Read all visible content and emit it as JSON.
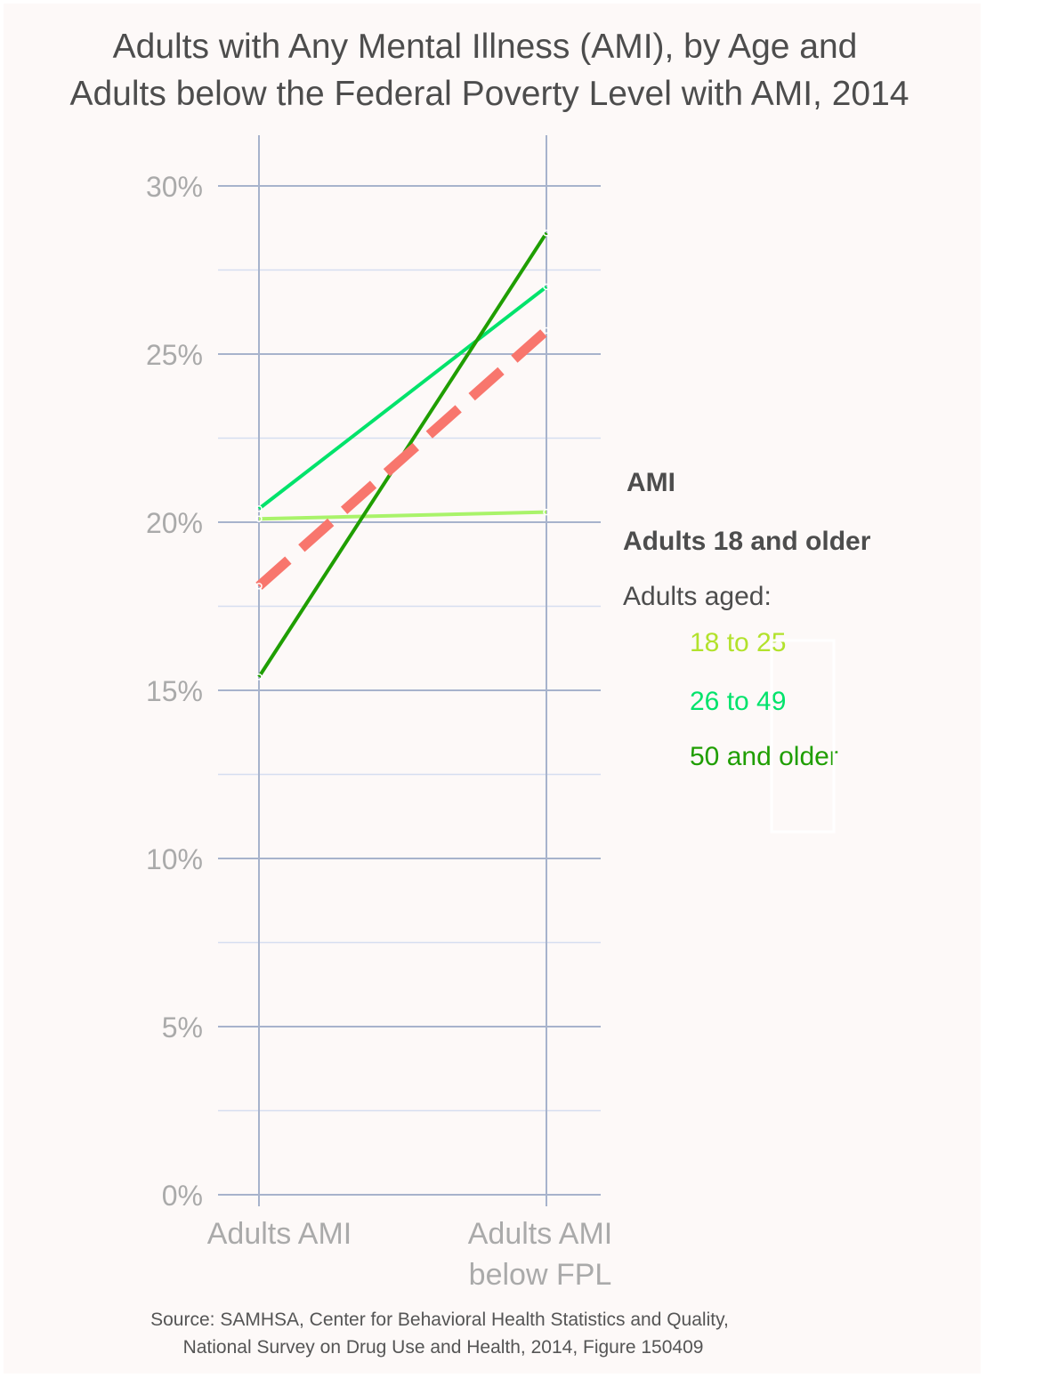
{
  "chart_data": {
    "type": "line",
    "title_lines": [
      "Adults with Any Mental Illness (AMI), by Age and",
      "Adults below the Federal Poverty Level with AMI, 2014"
    ],
    "categories": [
      {
        "lines": [
          "Adults AMI"
        ]
      },
      {
        "lines": [
          "Adults AMI",
          "below FPL"
        ]
      }
    ],
    "y_ticks": [
      {
        "value": 0,
        "label": "0%"
      },
      {
        "value": 5,
        "label": "5%"
      },
      {
        "value": 10,
        "label": "10%"
      },
      {
        "value": 15,
        "label": "15%"
      },
      {
        "value": 20,
        "label": "20%"
      },
      {
        "value": 25,
        "label": "25%"
      },
      {
        "value": 30,
        "label": "30%"
      }
    ],
    "ylim": [
      0,
      30
    ],
    "y_unit": "%",
    "grid": true,
    "series": [
      {
        "name": "18 to 25",
        "values": [
          20.1,
          20.3
        ],
        "color": "#a9f36a",
        "dashed": false
      },
      {
        "name": "26 to 49",
        "values": [
          20.4,
          27.0
        ],
        "color": "#00e36b",
        "dashed": false
      },
      {
        "name": "50 and older",
        "values": [
          15.4,
          28.6
        ],
        "color": "#1f9e00",
        "dashed": false
      },
      {
        "name": "Adults 18 and older",
        "values": [
          18.1,
          25.7
        ],
        "color": "#f8766d",
        "dashed": true
      }
    ],
    "legend": {
      "placement": "right",
      "title": "AMI",
      "overall": {
        "label": "Adults 18 and older",
        "color": "#f8766d"
      },
      "subtitle": "Adults aged:",
      "items": [
        {
          "label": "18 to 25",
          "color": "#b2e22c"
        },
        {
          "label": "26 to 49",
          "color": "#00e36b"
        },
        {
          "label": "50 and older",
          "color": "#1f9e00"
        }
      ]
    },
    "source_lines": [
      "Source: SAMHSA, Center for Behavioral Health Statistics and Quality,",
      "National Survey on Drug Use and Health, 2014, Figure 150409"
    ]
  }
}
